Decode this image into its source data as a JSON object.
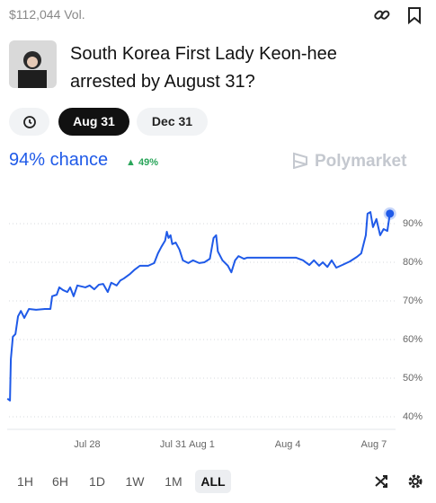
{
  "header": {
    "volume": "$112,044 Vol.",
    "title_line1": "South Korea First Lady Keon-hee",
    "title_line2": "arrested by August 31?"
  },
  "date_buttons": [
    "Aug 31",
    "Dec 31"
  ],
  "summary": {
    "chance": "94% chance",
    "change": "49%",
    "brand": "Polymarket"
  },
  "timeframes": [
    "1H",
    "6H",
    "1D",
    "1W",
    "1M",
    "ALL"
  ],
  "chart_data": {
    "type": "line",
    "x": [
      -2.78,
      -2.69,
      -2.66,
      -2.59,
      -2.5,
      -2.41,
      -2.31,
      -2.19,
      -2.03,
      -1.78,
      -1.47,
      -1.28,
      -1.22,
      -1.06,
      -0.97,
      -0.84,
      -0.69,
      -0.59,
      -0.47,
      -0.34,
      -0.06,
      0.09,
      0.25,
      0.41,
      0.56,
      0.72,
      0.84,
      1.03,
      1.16,
      1.28,
      1.5,
      1.66,
      1.84,
      2.13,
      2.34,
      2.47,
      2.59,
      2.72,
      2.78,
      2.84,
      2.91,
      2.97,
      3.09,
      3.22,
      3.34,
      3.53,
      3.69,
      3.91,
      4.09,
      4.28,
      4.41,
      4.5,
      4.56,
      4.72,
      4.91,
      5.03,
      5.16,
      5.28,
      5.47,
      5.59,
      6.34,
      7.28,
      7.53,
      7.75,
      7.91,
      8.09,
      8.22,
      8.38,
      8.53,
      8.69,
      8.84,
      9.16,
      9.41,
      9.56,
      9.72,
      9.78,
      9.88,
      9.97,
      10.09,
      10.22,
      10.34,
      10.47,
      10.56
    ],
    "series": [
      {
        "color": "#1f5ae8",
        "values": [
          44.7,
          44.2,
          54.9,
          60.7,
          61.4,
          66.0,
          67.4,
          65.6,
          67.9,
          67.7,
          67.9,
          67.9,
          71.2,
          71.6,
          73.5,
          72.8,
          72.3,
          73.5,
          71.2,
          74.0,
          73.5,
          74.0,
          73.0,
          74.2,
          74.4,
          72.3,
          74.7,
          74.0,
          75.3,
          75.8,
          77.0,
          78.1,
          79.1,
          79.1,
          79.8,
          82.3,
          84.0,
          85.6,
          87.9,
          86.3,
          87.0,
          84.7,
          85.1,
          83.3,
          80.5,
          79.8,
          80.5,
          79.8,
          80.0,
          80.9,
          86.3,
          87.0,
          82.8,
          80.5,
          79.1,
          77.4,
          80.5,
          81.6,
          80.9,
          81.2,
          81.2,
          81.2,
          80.5,
          79.3,
          80.5,
          79.1,
          80.0,
          78.8,
          80.5,
          78.6,
          79.1,
          80.2,
          81.4,
          82.3,
          87.0,
          92.6,
          93.0,
          89.1,
          91.2,
          87.0,
          88.6,
          88.1,
          92.6
        ]
      }
    ],
    "xlim": [
      -2.85,
      10.6
    ],
    "xticks": [
      {
        "value": 0,
        "label": "Jul 28"
      },
      {
        "value": 3,
        "label": "Jul 31"
      },
      {
        "value": 4,
        "label": "Aug 1"
      },
      {
        "value": 7,
        "label": "Aug 4"
      },
      {
        "value": 10,
        "label": "Aug 7"
      }
    ],
    "ylim": [
      36,
      98
    ],
    "yticks": [
      {
        "value": 40,
        "label": "40%"
      },
      {
        "value": 50,
        "label": "50%"
      },
      {
        "value": 60,
        "label": "60%"
      },
      {
        "value": 70,
        "label": "70%"
      },
      {
        "value": 80,
        "label": "80%"
      },
      {
        "value": 90,
        "label": "90%"
      }
    ],
    "grid": true
  }
}
